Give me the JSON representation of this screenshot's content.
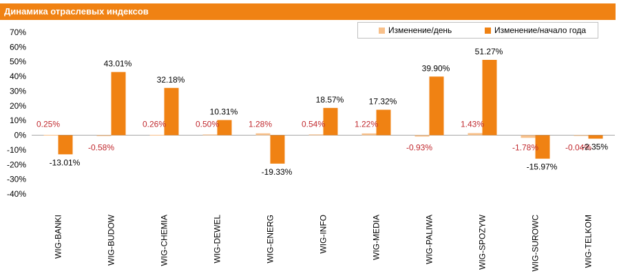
{
  "header": {
    "title": "Динамика отраслевых индексов"
  },
  "colors": {
    "title_bg": "#f08213",
    "day": "#f8c08a",
    "year": "#f08213",
    "day_label": "#c0282d"
  },
  "chart_data": {
    "type": "bar",
    "title": "Динамика отраслевых индексов",
    "categories": [
      "WIG-BANKI",
      "WIG-BUDOW",
      "WIG-CHEMIA",
      "WIG-DEWEL",
      "WIG-ENERG",
      "WIG-INFO",
      "WIG-MEDIA",
      "WIG-PALIWA",
      "WIG-SPOZYW",
      "WIG-SUROWC",
      "WIG-TELKOM"
    ],
    "series": [
      {
        "name": "Изменение/день",
        "color": "#f8c08a",
        "values": [
          0.25,
          -0.58,
          0.26,
          0.5,
          1.28,
          0.54,
          1.22,
          -0.93,
          1.43,
          -1.78,
          -0.04
        ],
        "labels": [
          "0.25%",
          "-0.58%",
          "0.26%",
          "0.50%",
          "1.28%",
          "0.54%",
          "1.22%",
          "-0.93%",
          "1.43%",
          "-1.78%",
          "-0.04%"
        ]
      },
      {
        "name": "Изменение/начало года",
        "color": "#f08213",
        "values": [
          -13.01,
          43.01,
          32.18,
          10.31,
          -19.33,
          18.57,
          17.32,
          39.9,
          51.27,
          -15.97,
          -2.35
        ],
        "labels": [
          "-13.01%",
          "43.01%",
          "32.18%",
          "10.31%",
          "-19.33%",
          "18.57%",
          "17.32%",
          "39.90%",
          "51.27%",
          "-15.97%",
          "-2.35%"
        ]
      }
    ],
    "yticks": [
      "70%",
      "60%",
      "50%",
      "40%",
      "30%",
      "20%",
      "10%",
      "0%",
      "-10%",
      "-20%",
      "-30%",
      "-40%"
    ],
    "ylim": [
      -40,
      70
    ],
    "legend_position": "top-right",
    "grid": false
  }
}
